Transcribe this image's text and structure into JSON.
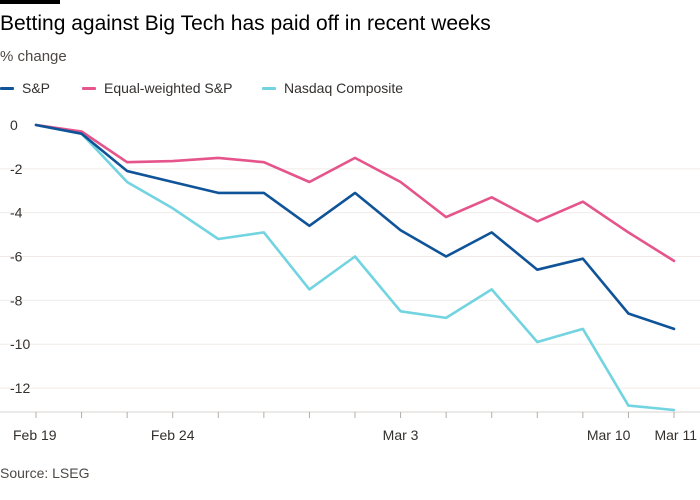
{
  "header": {
    "title": "Betting against Big Tech has paid off in recent weeks",
    "subtitle": "% change"
  },
  "legend": [
    {
      "label": "S&P",
      "color": "#0f5499"
    },
    {
      "label": "Equal-weighted S&P",
      "color": "#e5548a"
    },
    {
      "label": "Nasdaq Composite",
      "color": "#72d4e0"
    }
  ],
  "footer": {
    "source": "Source: LSEG"
  },
  "chart_data": {
    "type": "line",
    "title": "Betting against Big Tech has paid off in recent weeks",
    "ylabel": "% change",
    "xlabel": "",
    "ylim": [
      -13,
      0.5
    ],
    "yticks": [
      0,
      -2,
      -4,
      -6,
      -8,
      -10,
      -12
    ],
    "grid": true,
    "legend_position": "top",
    "x": [
      "Feb 19",
      "Feb 20",
      "Feb 21",
      "Feb 24",
      "Feb 25",
      "Feb 26",
      "Feb 27",
      "Feb 28",
      "Mar 3",
      "Mar 4",
      "Mar 5",
      "Mar 6",
      "Mar 7",
      "Mar 10",
      "Mar 11"
    ],
    "xtick_labels": [
      {
        "index": 0,
        "label": "Feb 19"
      },
      {
        "index": 3,
        "label": "Feb 24"
      },
      {
        "index": 8,
        "label": "Mar 3"
      },
      {
        "index": 13,
        "label": "Mar 10"
      },
      {
        "index": 14,
        "label": "Mar 11"
      }
    ],
    "series": [
      {
        "name": "S&P",
        "color": "#0f5499",
        "values": [
          0,
          -0.4,
          -2.1,
          -2.6,
          -3.1,
          -3.1,
          -4.6,
          -3.1,
          -4.8,
          -6.0,
          -4.9,
          -6.6,
          -6.1,
          -8.6,
          -9.3
        ]
      },
      {
        "name": "Equal-weighted S&P",
        "color": "#e5548a",
        "values": [
          0,
          -0.3,
          -1.7,
          -1.65,
          -1.5,
          -1.7,
          -2.6,
          -1.5,
          -2.6,
          -4.2,
          -3.3,
          -4.4,
          -3.5,
          -4.9,
          -6.2
        ]
      },
      {
        "name": "Nasdaq Composite",
        "color": "#72d4e0",
        "values": [
          0,
          -0.4,
          -2.6,
          -3.8,
          -5.2,
          -4.9,
          -7.5,
          -6.0,
          -8.5,
          -8.8,
          -7.5,
          -9.9,
          -9.3,
          -12.8,
          -13.0
        ]
      }
    ]
  }
}
